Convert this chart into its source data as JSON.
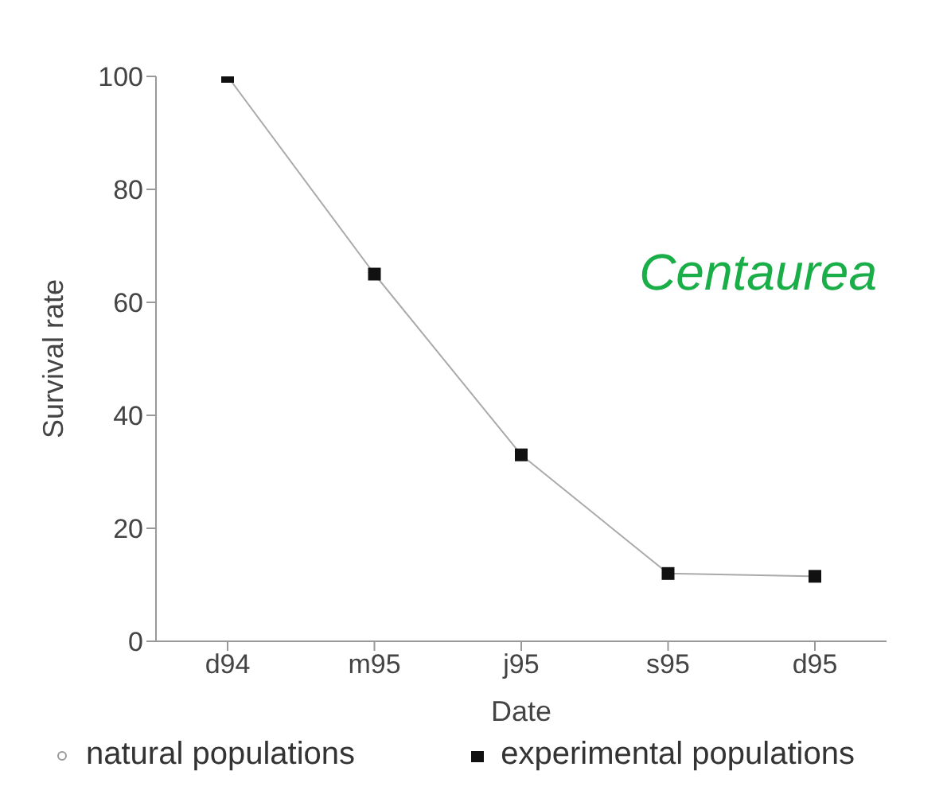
{
  "chart_data": {
    "type": "line",
    "xlabel": "Date",
    "ylabel": "Survival rate",
    "annotations": [
      "Centaurea"
    ],
    "categories": [
      "d94",
      "m95",
      "j95",
      "s95",
      "d95"
    ],
    "series": [
      {
        "name": "natural populations",
        "color": "#9a9a9a",
        "marker": "circle",
        "values": [
          null,
          null,
          null,
          null,
          null
        ]
      },
      {
        "name": "experimental populations",
        "color": "#111111",
        "marker": "square",
        "values": [
          100,
          65,
          33,
          12,
          11.5
        ]
      }
    ],
    "ylim": [
      0,
      100
    ],
    "yticks": [
      0,
      20,
      40,
      60,
      80,
      100
    ],
    "grid": false,
    "legend": "bottom",
    "line_style": "solid"
  }
}
